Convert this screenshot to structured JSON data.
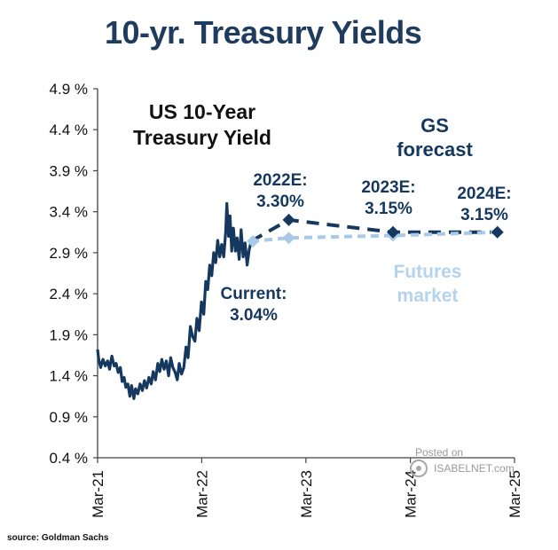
{
  "page": {
    "title": "10-yr. Treasury Yields",
    "source": "source: Goldman Sachs",
    "watermark": {
      "posted": "Posted on",
      "site": "ISABELNET.com"
    }
  },
  "chart_data": {
    "type": "line",
    "title": "US 10-Year Treasury Yield",
    "xlabel": "",
    "ylabel": "",
    "ylim": [
      0.4,
      4.9
    ],
    "y_ticks": [
      0.4,
      0.9,
      1.4,
      1.9,
      2.4,
      2.9,
      3.4,
      3.9,
      4.4,
      4.9
    ],
    "y_tick_labels": [
      "0.4 %",
      "0.9 %",
      "1.4 %",
      "1.9 %",
      "2.4 %",
      "2.9 %",
      "3.4 %",
      "3.9 %",
      "4.4 %",
      "4.9 %"
    ],
    "x_range": [
      "2021-03-01",
      "2025-03-01"
    ],
    "x_ticks": [
      "2021-03-01",
      "2022-03-01",
      "2023-03-01",
      "2024-03-01",
      "2025-03-01"
    ],
    "x_tick_labels": [
      "Mar-21",
      "Mar-22",
      "Mar-23",
      "Mar-24",
      "Mar-25"
    ],
    "grid": false,
    "series": [
      {
        "name": "",
        "style": "solid",
        "color": "#15385f",
        "points": [
          [
            "2021-03-01",
            1.72
          ],
          [
            "2021-03-05",
            1.6
          ],
          [
            "2021-03-12",
            1.5
          ],
          [
            "2021-03-20",
            1.6
          ],
          [
            "2021-03-28",
            1.52
          ],
          [
            "2021-04-05",
            1.58
          ],
          [
            "2021-04-12",
            1.48
          ],
          [
            "2021-04-20",
            1.64
          ],
          [
            "2021-04-28",
            1.52
          ],
          [
            "2021-05-05",
            1.55
          ],
          [
            "2021-05-12",
            1.44
          ],
          [
            "2021-05-20",
            1.5
          ],
          [
            "2021-05-26",
            1.33
          ],
          [
            "2021-06-02",
            1.38
          ],
          [
            "2021-06-08",
            1.26
          ],
          [
            "2021-06-15",
            1.3
          ],
          [
            "2021-06-22",
            1.15
          ],
          [
            "2021-06-28",
            1.28
          ],
          [
            "2021-07-06",
            1.12
          ],
          [
            "2021-07-12",
            1.24
          ],
          [
            "2021-07-20",
            1.18
          ],
          [
            "2021-07-28",
            1.3
          ],
          [
            "2021-08-05",
            1.22
          ],
          [
            "2021-08-12",
            1.34
          ],
          [
            "2021-08-20",
            1.25
          ],
          [
            "2021-08-28",
            1.38
          ],
          [
            "2021-09-05",
            1.3
          ],
          [
            "2021-09-12",
            1.45
          ],
          [
            "2021-09-20",
            1.35
          ],
          [
            "2021-09-28",
            1.55
          ],
          [
            "2021-10-05",
            1.45
          ],
          [
            "2021-10-12",
            1.6
          ],
          [
            "2021-10-20",
            1.48
          ],
          [
            "2021-10-28",
            1.58
          ],
          [
            "2021-11-05",
            1.4
          ],
          [
            "2021-11-12",
            1.62
          ],
          [
            "2021-11-20",
            1.5
          ],
          [
            "2021-11-28",
            1.44
          ],
          [
            "2021-12-05",
            1.35
          ],
          [
            "2021-12-12",
            1.55
          ],
          [
            "2021-12-20",
            1.42
          ],
          [
            "2021-12-28",
            1.5
          ],
          [
            "2022-01-05",
            1.75
          ],
          [
            "2022-01-12",
            1.62
          ],
          [
            "2022-01-20",
            2.0
          ],
          [
            "2022-01-28",
            1.88
          ],
          [
            "2022-02-05",
            1.82
          ],
          [
            "2022-02-12",
            2.1
          ],
          [
            "2022-02-20",
            1.95
          ],
          [
            "2022-02-28",
            2.3
          ],
          [
            "2022-03-08",
            2.15
          ],
          [
            "2022-03-15",
            2.55
          ],
          [
            "2022-03-22",
            2.45
          ],
          [
            "2022-03-29",
            2.75
          ],
          [
            "2022-04-05",
            2.62
          ],
          [
            "2022-04-12",
            2.9
          ],
          [
            "2022-04-19",
            2.78
          ],
          [
            "2022-04-26",
            3.05
          ],
          [
            "2022-05-03",
            2.85
          ],
          [
            "2022-05-10",
            3.0
          ],
          [
            "2022-05-17",
            2.85
          ],
          [
            "2022-05-24",
            3.15
          ],
          [
            "2022-05-28",
            3.5
          ],
          [
            "2022-06-03",
            3.1
          ],
          [
            "2022-06-08",
            3.35
          ],
          [
            "2022-06-14",
            2.92
          ],
          [
            "2022-06-20",
            3.2
          ],
          [
            "2022-06-27",
            2.92
          ],
          [
            "2022-07-03",
            3.08
          ],
          [
            "2022-07-10",
            2.82
          ],
          [
            "2022-07-17",
            3.18
          ],
          [
            "2022-07-24",
            2.85
          ],
          [
            "2022-07-31",
            3.02
          ],
          [
            "2022-08-07",
            2.75
          ],
          [
            "2022-08-14",
            2.93
          ],
          [
            "2022-08-21",
            3.04
          ]
        ]
      },
      {
        "name": "GS forecast",
        "style": "dashed",
        "color": "#15385f",
        "points": [
          [
            "2022-08-21",
            3.04
          ],
          [
            "2022-12-31",
            3.3
          ],
          [
            "2023-12-31",
            3.15
          ],
          [
            "2024-12-31",
            3.15
          ]
        ]
      },
      {
        "name": "Futures market",
        "style": "dashed",
        "color": "#a8c9e8",
        "points": [
          [
            "2022-08-21",
            3.04
          ],
          [
            "2022-12-31",
            3.08
          ],
          [
            "2023-12-31",
            3.11
          ],
          [
            "2024-12-31",
            3.15
          ]
        ]
      }
    ],
    "annotations": [
      {
        "id": "current",
        "lines": [
          "Current:",
          "3.04%"
        ]
      },
      {
        "id": "e2022",
        "lines": [
          "2022E:",
          "3.30%"
        ]
      },
      {
        "id": "e2023",
        "lines": [
          "2023E:",
          "3.15%"
        ]
      },
      {
        "id": "e2024",
        "lines": [
          "2024E:",
          "3.15%"
        ]
      }
    ],
    "inner_title_lines": [
      "US 10-Year",
      "Treasury Yield"
    ],
    "legend_labels": {
      "gs": [
        "GS",
        "forecast"
      ],
      "futures": [
        "Futures",
        "market"
      ]
    },
    "colors": {
      "title": "#1f3b5e",
      "actual": "#15385f",
      "gs": "#15385f",
      "futures": "#a8c9e8",
      "futures_label": "#b4d3ef"
    }
  }
}
